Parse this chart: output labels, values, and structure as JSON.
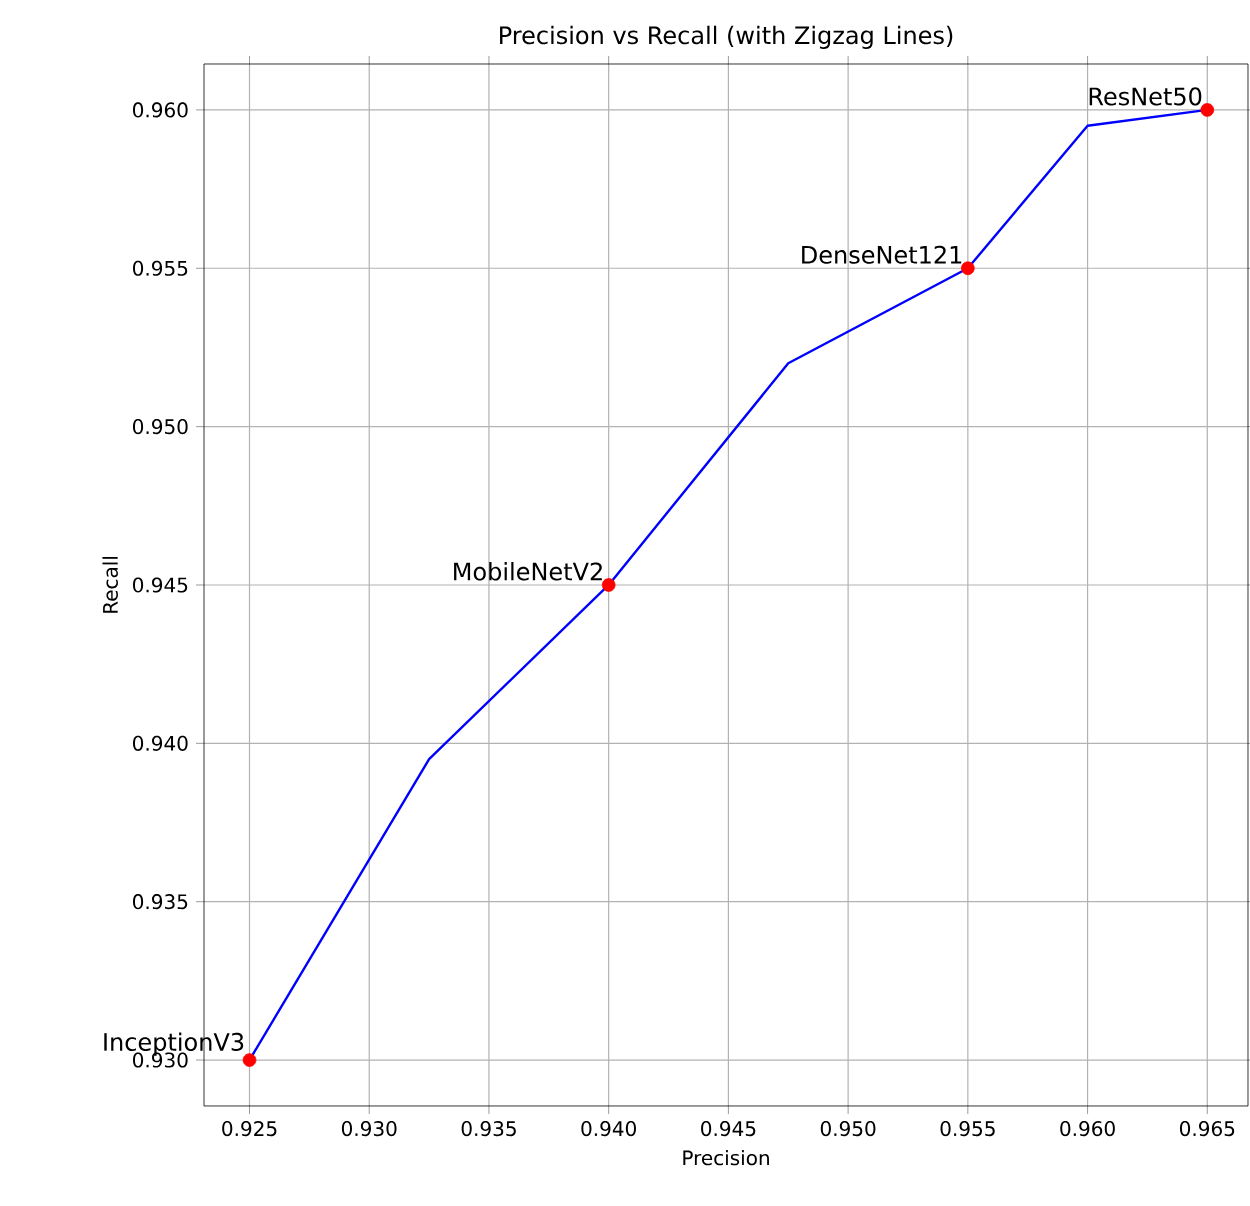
{
  "chart_data": {
    "type": "line",
    "title": "Precision vs Recall (with Zigzag Lines)",
    "xlabel": "Precision",
    "ylabel": "Recall",
    "series": [
      {
        "color": "#0000ff",
        "x": [
          0.925,
          0.9325,
          0.94,
          0.9475,
          0.955,
          0.96,
          0.965
        ],
        "values": [
          0.93,
          0.9395,
          0.945,
          0.952,
          0.955,
          0.9595,
          0.96
        ]
      },
      {
        "type": "scatter",
        "color": "#ff0000",
        "x": [
          0.925,
          0.94,
          0.955,
          0.965
        ],
        "values": [
          0.93,
          0.945,
          0.955,
          0.96
        ]
      }
    ],
    "annotations": [
      {
        "text": "InceptionV3",
        "x": 0.925,
        "y": 0.93
      },
      {
        "text": "MobileNetV2",
        "x": 0.94,
        "y": 0.945
      },
      {
        "text": "DenseNet121",
        "x": 0.955,
        "y": 0.955
      },
      {
        "text": "ResNet50",
        "x": 0.965,
        "y": 0.96
      }
    ],
    "xlim": [
      0.9231,
      0.9667
    ],
    "ylim": [
      0.92855,
      0.96145
    ],
    "xticks": [
      0.925,
      {
        "value": 0.93,
        "label": "0.930"
      },
      0.935,
      {
        "value": 0.94,
        "label": "0.940"
      },
      0.945,
      {
        "value": 0.95,
        "label": "0.950"
      },
      0.955,
      {
        "value": 0.96,
        "label": "0.960"
      },
      0.965
    ],
    "yticks": [
      {
        "value": 0.93,
        "label": "0.930"
      },
      0.935,
      {
        "value": 0.94,
        "label": "0.940"
      },
      0.945,
      {
        "value": 0.95,
        "label": "0.950"
      },
      0.955,
      {
        "value": 0.96,
        "label": "0.960"
      }
    ],
    "grid": true
  }
}
